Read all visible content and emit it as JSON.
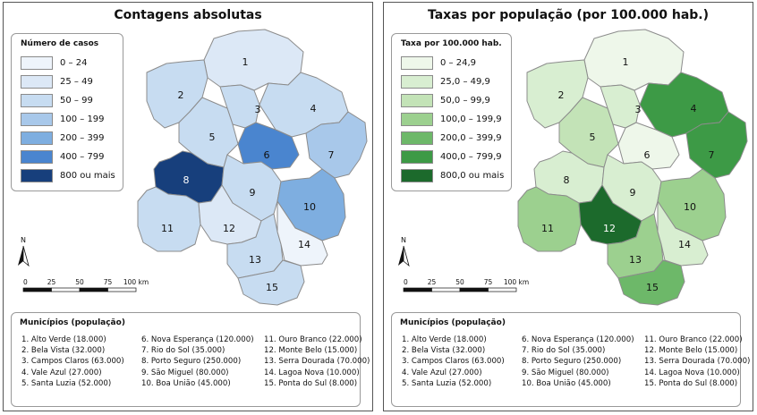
{
  "panels": [
    {
      "id": "left",
      "title": "Contagens absolutas",
      "legend_title": "Número de casos",
      "classes": [
        {
          "label": "0 – 24",
          "color": "#eef4fb"
        },
        {
          "label": "25 – 49",
          "color": "#dce8f6"
        },
        {
          "label": "50 – 99",
          "color": "#c7dcf1"
        },
        {
          "label": "100 – 199",
          "color": "#a8c8ea"
        },
        {
          "label": "200 – 399",
          "color": "#7eaee0"
        },
        {
          "label": "400 – 799",
          "color": "#4a85cf"
        },
        {
          "label": "800 ou mais",
          "color": "#173f7c"
        }
      ],
      "region_fills": [
        "#dce8f6",
        "#c7dcf1",
        "#c7dcf1",
        "#c7dcf1",
        "#c7dcf1",
        "#4a85cf",
        "#a8c8ea",
        "#173f7c",
        "#c7dcf1",
        "#7eaee0",
        "#c7dcf1",
        "#dce8f6",
        "#c7dcf1",
        "#eef4fb",
        "#c7dcf1"
      ]
    },
    {
      "id": "right",
      "title": "Taxas por população (por 100.000 hab.)",
      "legend_title": "Taxa por 100.000 hab.",
      "classes": [
        {
          "label": "0 – 24,9",
          "color": "#eef7ea"
        },
        {
          "label": "25,0 – 49,9",
          "color": "#d8eed1"
        },
        {
          "label": "50,0 – 99,9",
          "color": "#c3e3b7"
        },
        {
          "label": "100,0 – 199,9",
          "color": "#9cd08f"
        },
        {
          "label": "200,0 – 399,9",
          "color": "#6db869"
        },
        {
          "label": "400,0 – 799,9",
          "color": "#3d9a46"
        },
        {
          "label": "800,0 ou mais",
          "color": "#1c6a2c"
        }
      ],
      "region_fills": [
        "#eef7ea",
        "#d8eed1",
        "#d8eed1",
        "#3d9a46",
        "#c3e3b7",
        "#eef7ea",
        "#3d9a46",
        "#d8eed1",
        "#d8eed1",
        "#9cd08f",
        "#9cd08f",
        "#1c6a2c",
        "#9cd08f",
        "#d8eed1",
        "#6db869"
      ]
    }
  ],
  "region_numbers": [
    "1",
    "2",
    "3",
    "4",
    "5",
    "6",
    "7",
    "8",
    "9",
    "10",
    "11",
    "12",
    "13",
    "14",
    "15"
  ],
  "north_label": "N",
  "scale_labels": [
    "0",
    "25",
    "50",
    "75",
    "100 km"
  ],
  "municipios_title": "Municípios (população)",
  "municipios": [
    "1. Alto Verde (18.000)",
    "2. Bela Vista (32.000)",
    "3. Campos Claros (63.000)",
    "4. Vale Azul (27.000)",
    "5. Santa Luzia (52.000)",
    "6. Nova Esperança (120.000)",
    "7. Rio do Sol (35.000)",
    "8. Porto Seguro (250.000)",
    "9. São Miguel (80.000)",
    "10. Boa União (45.000)",
    "11. Ouro Branco (22.000)",
    "12. Monte Belo (15.000)",
    "13. Serra Dourada (70.000)",
    "14. Lagoa Nova (10.000)",
    "15. Ponta do Sul (8.000)"
  ]
}
